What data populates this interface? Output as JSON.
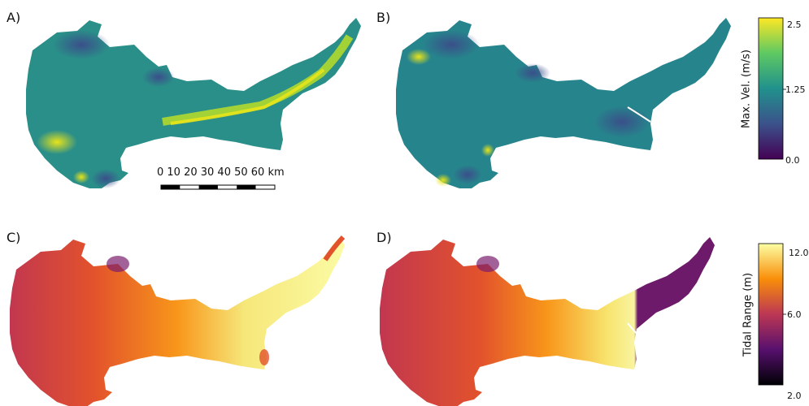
{
  "panels": {
    "a": {
      "label": "A)"
    },
    "b": {
      "label": "B)"
    },
    "c": {
      "label": "C)"
    },
    "d": {
      "label": "D)"
    }
  },
  "scale_bar": {
    "labels": "0  10 20 30 40 50 60 km"
  },
  "colorbars": {
    "velocity": {
      "title": "Max. Vel. (m/s)",
      "ticks": [
        "2.5",
        "1.25",
        "0.0"
      ],
      "colormap": "viridis"
    },
    "tidal": {
      "title": "Tidal Range (m)",
      "ticks": [
        "12.0",
        "6.0",
        "2.0"
      ],
      "colormap": "inferno"
    }
  }
}
